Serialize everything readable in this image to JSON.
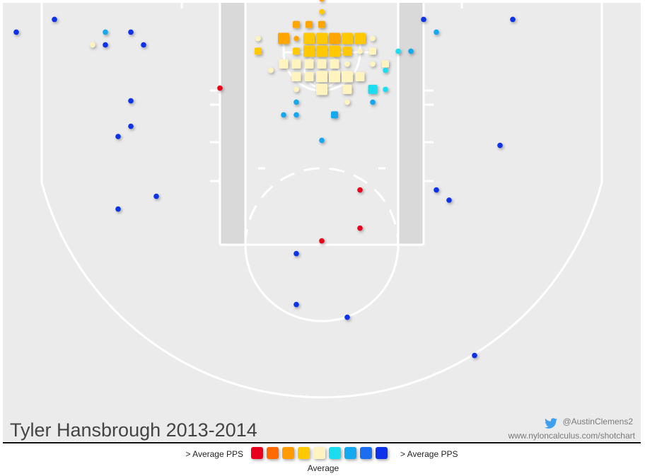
{
  "chart_data": {
    "type": "scatter",
    "title": "Tyler Hansbrough 2013-2014",
    "credits": {
      "twitter": "@AustinClemens2",
      "url": "www.nyloncalculus.com/shotchart"
    },
    "legend": {
      "left_label": "> Average PPS",
      "right_label": "> Average PPS",
      "center_label": "Average",
      "colors": [
        "#e8001c",
        "#ff6a00",
        "#ff9a00",
        "#ffc800",
        "#fff4c0",
        "#1adcf0",
        "#12a8ee",
        "#1a6ef0",
        "#0a32e8"
      ]
    },
    "squares": [
      {
        "x": -20,
        "y": 43,
        "size": "s",
        "color": "#ffa500"
      },
      {
        "x": -10,
        "y": 43,
        "size": "s",
        "color": "#ffa500"
      },
      {
        "x": 0,
        "y": 43,
        "size": "s",
        "color": "#ffa500"
      },
      {
        "x": -30,
        "y": 32,
        "size": "l",
        "color": "#ffa500"
      },
      {
        "x": -10,
        "y": 32,
        "size": "l",
        "color": "#ffc800"
      },
      {
        "x": 0,
        "y": 32,
        "size": "l",
        "color": "#ffc800"
      },
      {
        "x": 10,
        "y": 32,
        "size": "l",
        "color": "#ffa500"
      },
      {
        "x": 20,
        "y": 32,
        "size": "l",
        "color": "#ffc800"
      },
      {
        "x": 30,
        "y": 32,
        "size": "l",
        "color": "#ffc800"
      },
      {
        "x": -50,
        "y": 22,
        "size": "s",
        "color": "#ffc800"
      },
      {
        "x": -20,
        "y": 22,
        "size": "s",
        "color": "#ffc800"
      },
      {
        "x": -10,
        "y": 22,
        "size": "l",
        "color": "#ffc800"
      },
      {
        "x": 0,
        "y": 22,
        "size": "l",
        "color": "#ffc800"
      },
      {
        "x": 10,
        "y": 22,
        "size": "l",
        "color": "#ffc800"
      },
      {
        "x": 20,
        "y": 22,
        "size": "m",
        "color": "#ffc800"
      },
      {
        "x": 40,
        "y": 22,
        "size": "s",
        "color": "#fff4c0"
      },
      {
        "x": -30,
        "y": 12,
        "size": "m",
        "color": "#fff4c0"
      },
      {
        "x": -20,
        "y": 12,
        "size": "m",
        "color": "#fff4c0"
      },
      {
        "x": -10,
        "y": 12,
        "size": "m",
        "color": "#fff4c0"
      },
      {
        "x": 0,
        "y": 12,
        "size": "m",
        "color": "#fff4c0"
      },
      {
        "x": 10,
        "y": 12,
        "size": "m",
        "color": "#fff4c0"
      },
      {
        "x": 50,
        "y": 12,
        "size": "s",
        "color": "#fff4c0"
      },
      {
        "x": -20,
        "y": 2,
        "size": "m",
        "color": "#fff4c0"
      },
      {
        "x": -10,
        "y": 2,
        "size": "m",
        "color": "#fff4c0"
      },
      {
        "x": 0,
        "y": 2,
        "size": "l",
        "color": "#fff4c0"
      },
      {
        "x": 10,
        "y": 2,
        "size": "l",
        "color": "#fff4c0"
      },
      {
        "x": 20,
        "y": 2,
        "size": "l",
        "color": "#fff4c0"
      },
      {
        "x": 30,
        "y": 2,
        "size": "m",
        "color": "#fff4c0"
      },
      {
        "x": 0,
        "y": -8,
        "size": "l",
        "color": "#fff4c0"
      },
      {
        "x": 20,
        "y": -8,
        "size": "m",
        "color": "#fff4c0"
      },
      {
        "x": 40,
        "y": -8,
        "size": "m",
        "color": "#1adcf0"
      },
      {
        "x": 10,
        "y": -28,
        "size": "s",
        "color": "#12a8ee"
      }
    ],
    "dots": [
      {
        "x": 0,
        "y": 63,
        "color": "#ffa500"
      },
      {
        "x": 0,
        "y": 53,
        "color": "#ffc800"
      },
      {
        "x": -20,
        "y": 32,
        "color": "#ffa500"
      },
      {
        "x": -50,
        "y": 32,
        "color": "#fff4c0"
      },
      {
        "x": 40,
        "y": 32,
        "color": "#fff4c0"
      },
      {
        "x": 30,
        "y": 22,
        "color": "#fff4c0"
      },
      {
        "x": 20,
        "y": 12,
        "color": "#fff4c0"
      },
      {
        "x": 40,
        "y": 12,
        "color": "#fff4c0"
      },
      {
        "x": -40,
        "y": 7,
        "color": "#fff4c0"
      },
      {
        "x": -20,
        "y": -8,
        "color": "#fff4c0"
      },
      {
        "x": 20,
        "y": -18,
        "color": "#fff4c0"
      },
      {
        "x": 50,
        "y": 7,
        "color": "#1adcf0"
      },
      {
        "x": 50,
        "y": -8,
        "color": "#1adcf0"
      },
      {
        "x": 40,
        "y": -18,
        "color": "#12a8ee"
      },
      {
        "x": 60,
        "y": 22,
        "color": "#1adcf0"
      },
      {
        "x": 70,
        "y": 22,
        "color": "#12a8ee"
      },
      {
        "x": -20,
        "y": -18,
        "color": "#12a8ee"
      },
      {
        "x": -20,
        "y": -28,
        "color": "#12a8ee"
      },
      {
        "x": -30,
        "y": -28,
        "color": "#12a8ee"
      },
      {
        "x": 0,
        "y": -48,
        "color": "#12a8ee"
      },
      {
        "x": 90,
        "y": 37,
        "color": "#12a8ee"
      },
      {
        "x": 80,
        "y": 47,
        "color": "#0a32e8"
      },
      {
        "x": 150,
        "y": 47,
        "color": "#0a32e8"
      },
      {
        "x": -80,
        "y": -7,
        "color": "#e8001c"
      },
      {
        "x": 30,
        "y": -87,
        "color": "#e8001c"
      },
      {
        "x": 30,
        "y": -117,
        "color": "#e8001c"
      },
      {
        "x": 0,
        "y": -127,
        "color": "#e8001c"
      },
      {
        "x": -20,
        "y": -137,
        "color": "#0a32e8"
      },
      {
        "x": -20,
        "y": -177,
        "color": "#0a32e8"
      },
      {
        "x": 20,
        "y": -187,
        "color": "#0a32e8"
      },
      {
        "x": 120,
        "y": -217,
        "color": "#0a32e8"
      },
      {
        "x": 90,
        "y": -87,
        "color": "#0a32e8"
      },
      {
        "x": 100,
        "y": -95,
        "color": "#0a32e8"
      },
      {
        "x": 140,
        "y": -52,
        "color": "#0a32e8"
      },
      {
        "x": -240,
        "y": 37,
        "color": "#0a32e8"
      },
      {
        "x": -210,
        "y": 47,
        "color": "#0a32e8"
      },
      {
        "x": -170,
        "y": 37,
        "color": "#12a8ee"
      },
      {
        "x": -150,
        "y": 37,
        "color": "#0a32e8"
      },
      {
        "x": -180,
        "y": 27,
        "color": "#fff4c0"
      },
      {
        "x": -170,
        "y": 27,
        "color": "#0a32e8"
      },
      {
        "x": -140,
        "y": 27,
        "color": "#0a32e8"
      },
      {
        "x": -150,
        "y": -17,
        "color": "#0a32e8"
      },
      {
        "x": -150,
        "y": -37,
        "color": "#0a32e8"
      },
      {
        "x": -160,
        "y": -45,
        "color": "#0a32e8"
      },
      {
        "x": -130,
        "y": -92,
        "color": "#0a32e8"
      },
      {
        "x": -160,
        "y": -102,
        "color": "#0a32e8"
      }
    ]
  }
}
